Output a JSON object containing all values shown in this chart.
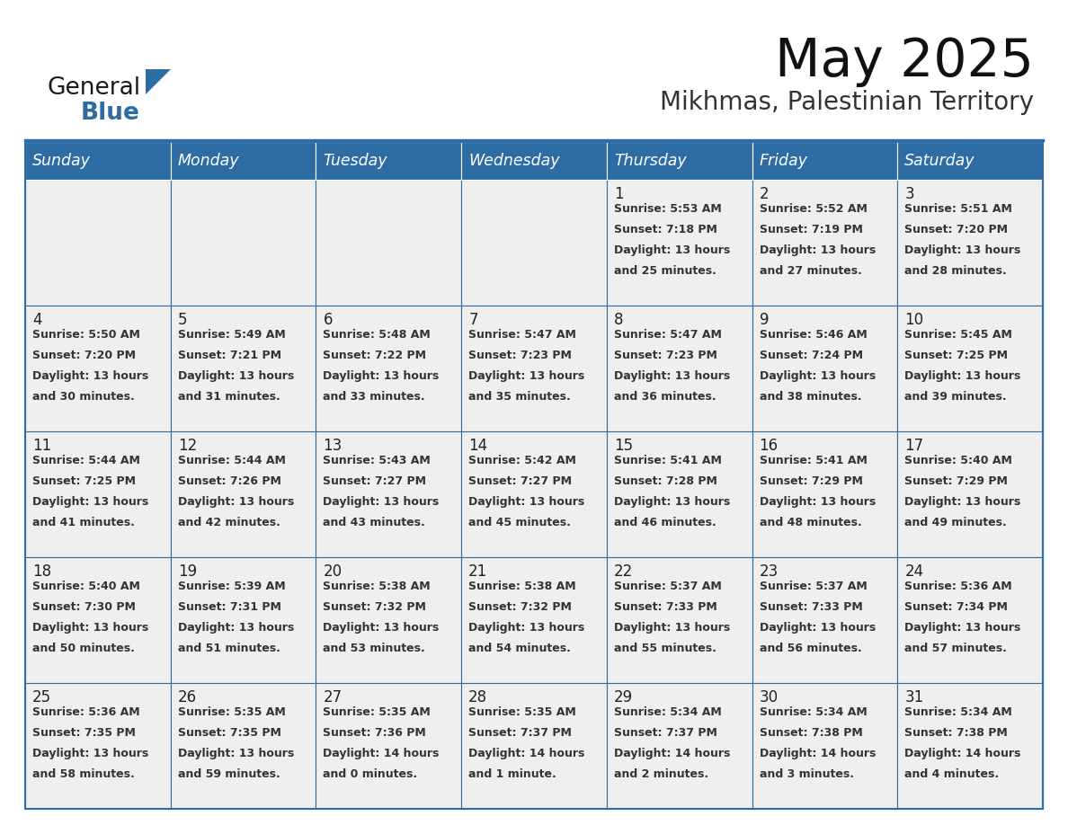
{
  "title": "May 2025",
  "subtitle": "Mikhmas, Palestinian Territory",
  "days_of_week": [
    "Sunday",
    "Monday",
    "Tuesday",
    "Wednesday",
    "Thursday",
    "Friday",
    "Saturday"
  ],
  "header_bg": "#2E6DA4",
  "header_text": "#FFFFFF",
  "cell_bg": "#F0F0F0",
  "border_color": "#2E6DA4",
  "text_color": "#333333",
  "calendar_data": [
    [
      null,
      null,
      null,
      null,
      {
        "day": 1,
        "sunrise": "5:53 AM",
        "sunset": "7:18 PM",
        "daylight_line1": "Daylight: 13 hours",
        "daylight_line2": "and 25 minutes."
      },
      {
        "day": 2,
        "sunrise": "5:52 AM",
        "sunset": "7:19 PM",
        "daylight_line1": "Daylight: 13 hours",
        "daylight_line2": "and 27 minutes."
      },
      {
        "day": 3,
        "sunrise": "5:51 AM",
        "sunset": "7:20 PM",
        "daylight_line1": "Daylight: 13 hours",
        "daylight_line2": "and 28 minutes."
      }
    ],
    [
      {
        "day": 4,
        "sunrise": "5:50 AM",
        "sunset": "7:20 PM",
        "daylight_line1": "Daylight: 13 hours",
        "daylight_line2": "and 30 minutes."
      },
      {
        "day": 5,
        "sunrise": "5:49 AM",
        "sunset": "7:21 PM",
        "daylight_line1": "Daylight: 13 hours",
        "daylight_line2": "and 31 minutes."
      },
      {
        "day": 6,
        "sunrise": "5:48 AM",
        "sunset": "7:22 PM",
        "daylight_line1": "Daylight: 13 hours",
        "daylight_line2": "and 33 minutes."
      },
      {
        "day": 7,
        "sunrise": "5:47 AM",
        "sunset": "7:23 PM",
        "daylight_line1": "Daylight: 13 hours",
        "daylight_line2": "and 35 minutes."
      },
      {
        "day": 8,
        "sunrise": "5:47 AM",
        "sunset": "7:23 PM",
        "daylight_line1": "Daylight: 13 hours",
        "daylight_line2": "and 36 minutes."
      },
      {
        "day": 9,
        "sunrise": "5:46 AM",
        "sunset": "7:24 PM",
        "daylight_line1": "Daylight: 13 hours",
        "daylight_line2": "and 38 minutes."
      },
      {
        "day": 10,
        "sunrise": "5:45 AM",
        "sunset": "7:25 PM",
        "daylight_line1": "Daylight: 13 hours",
        "daylight_line2": "and 39 minutes."
      }
    ],
    [
      {
        "day": 11,
        "sunrise": "5:44 AM",
        "sunset": "7:25 PM",
        "daylight_line1": "Daylight: 13 hours",
        "daylight_line2": "and 41 minutes."
      },
      {
        "day": 12,
        "sunrise": "5:44 AM",
        "sunset": "7:26 PM",
        "daylight_line1": "Daylight: 13 hours",
        "daylight_line2": "and 42 minutes."
      },
      {
        "day": 13,
        "sunrise": "5:43 AM",
        "sunset": "7:27 PM",
        "daylight_line1": "Daylight: 13 hours",
        "daylight_line2": "and 43 minutes."
      },
      {
        "day": 14,
        "sunrise": "5:42 AM",
        "sunset": "7:27 PM",
        "daylight_line1": "Daylight: 13 hours",
        "daylight_line2": "and 45 minutes."
      },
      {
        "day": 15,
        "sunrise": "5:41 AM",
        "sunset": "7:28 PM",
        "daylight_line1": "Daylight: 13 hours",
        "daylight_line2": "and 46 minutes."
      },
      {
        "day": 16,
        "sunrise": "5:41 AM",
        "sunset": "7:29 PM",
        "daylight_line1": "Daylight: 13 hours",
        "daylight_line2": "and 48 minutes."
      },
      {
        "day": 17,
        "sunrise": "5:40 AM",
        "sunset": "7:29 PM",
        "daylight_line1": "Daylight: 13 hours",
        "daylight_line2": "and 49 minutes."
      }
    ],
    [
      {
        "day": 18,
        "sunrise": "5:40 AM",
        "sunset": "7:30 PM",
        "daylight_line1": "Daylight: 13 hours",
        "daylight_line2": "and 50 minutes."
      },
      {
        "day": 19,
        "sunrise": "5:39 AM",
        "sunset": "7:31 PM",
        "daylight_line1": "Daylight: 13 hours",
        "daylight_line2": "and 51 minutes."
      },
      {
        "day": 20,
        "sunrise": "5:38 AM",
        "sunset": "7:32 PM",
        "daylight_line1": "Daylight: 13 hours",
        "daylight_line2": "and 53 minutes."
      },
      {
        "day": 21,
        "sunrise": "5:38 AM",
        "sunset": "7:32 PM",
        "daylight_line1": "Daylight: 13 hours",
        "daylight_line2": "and 54 minutes."
      },
      {
        "day": 22,
        "sunrise": "5:37 AM",
        "sunset": "7:33 PM",
        "daylight_line1": "Daylight: 13 hours",
        "daylight_line2": "and 55 minutes."
      },
      {
        "day": 23,
        "sunrise": "5:37 AM",
        "sunset": "7:33 PM",
        "daylight_line1": "Daylight: 13 hours",
        "daylight_line2": "and 56 minutes."
      },
      {
        "day": 24,
        "sunrise": "5:36 AM",
        "sunset": "7:34 PM",
        "daylight_line1": "Daylight: 13 hours",
        "daylight_line2": "and 57 minutes."
      }
    ],
    [
      {
        "day": 25,
        "sunrise": "5:36 AM",
        "sunset": "7:35 PM",
        "daylight_line1": "Daylight: 13 hours",
        "daylight_line2": "and 58 minutes."
      },
      {
        "day": 26,
        "sunrise": "5:35 AM",
        "sunset": "7:35 PM",
        "daylight_line1": "Daylight: 13 hours",
        "daylight_line2": "and 59 minutes."
      },
      {
        "day": 27,
        "sunrise": "5:35 AM",
        "sunset": "7:36 PM",
        "daylight_line1": "Daylight: 14 hours",
        "daylight_line2": "and 0 minutes."
      },
      {
        "day": 28,
        "sunrise": "5:35 AM",
        "sunset": "7:37 PM",
        "daylight_line1": "Daylight: 14 hours",
        "daylight_line2": "and 1 minute."
      },
      {
        "day": 29,
        "sunrise": "5:34 AM",
        "sunset": "7:37 PM",
        "daylight_line1": "Daylight: 14 hours",
        "daylight_line2": "and 2 minutes."
      },
      {
        "day": 30,
        "sunrise": "5:34 AM",
        "sunset": "7:38 PM",
        "daylight_line1": "Daylight: 14 hours",
        "daylight_line2": "and 3 minutes."
      },
      {
        "day": 31,
        "sunrise": "5:34 AM",
        "sunset": "7:38 PM",
        "daylight_line1": "Daylight: 14 hours",
        "daylight_line2": "and 4 minutes."
      }
    ]
  ]
}
